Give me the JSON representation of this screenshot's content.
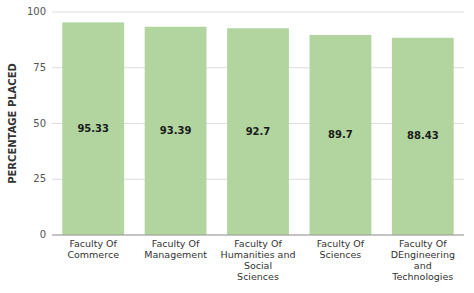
{
  "chart_data": {
    "type": "bar",
    "y_label": "PERCENTAGE PLACED",
    "categories": [
      "Faculty Of\nCommerce",
      "Faculty Of\nManagement",
      "Faculty Of\nHumanities and\nSocial\nSciences",
      "Faculty Of\nSciences",
      "Faculty Of\nDEngineering\nand\nTechnologies"
    ],
    "values": [
      95.33,
      93.39,
      92.7,
      89.7,
      88.43
    ],
    "color": "#b2d5a0",
    "ylim": [
      0,
      100
    ],
    "yticks": [
      0,
      25,
      50,
      75,
      100
    ],
    "grid": true,
    "data_labels": true
  }
}
